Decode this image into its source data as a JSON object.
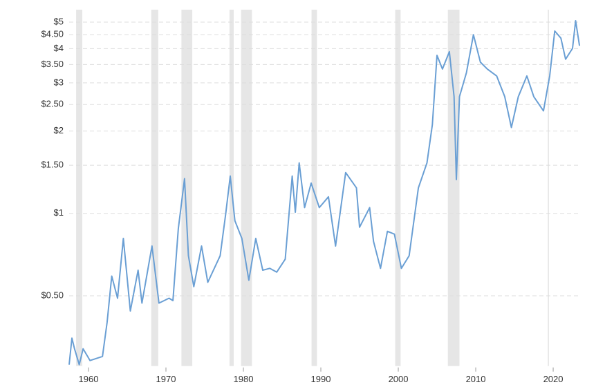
{
  "chart_data": {
    "type": "line",
    "log_scale": true,
    "grid": true,
    "color": "#6a9fd4",
    "band_color": "#e6e6e6",
    "xlim": [
      1957.5,
      2023.8
    ],
    "ylim": [
      0.28,
      5.4
    ],
    "xticks": [
      1960,
      1970,
      1980,
      1990,
      2000,
      2010,
      2020
    ],
    "yticks": [
      {
        "value": 0.5,
        "label": "$0.50"
      },
      {
        "value": 1,
        "label": "$1"
      },
      {
        "value": 1.5,
        "label": "$1.50"
      },
      {
        "value": 2,
        "label": "$2"
      },
      {
        "value": 2.5,
        "label": "$2.50"
      },
      {
        "value": 3,
        "label": "$3"
      },
      {
        "value": 3.5,
        "label": "$3.50"
      },
      {
        "value": 4,
        "label": "$4"
      },
      {
        "value": 4.5,
        "label": "$4.50"
      },
      {
        "value": 5,
        "label": "$5"
      }
    ],
    "shaded_ranges": [
      [
        1958.4,
        1959.2
      ],
      [
        1968.1,
        1969.0
      ],
      [
        1972.0,
        1973.4
      ],
      [
        1978.2,
        1978.75
      ],
      [
        1979.7,
        1981.1
      ],
      [
        1988.8,
        1989.5
      ],
      [
        1999.6,
        2000.3
      ],
      [
        2006.4,
        2007.9
      ],
      [
        2019.3,
        2019.45
      ]
    ],
    "x": [
      1957.5,
      1957.86,
      1958.2,
      1958.8,
      1959.3,
      1960.2,
      1961.8,
      1962.4,
      1963.0,
      1963.75,
      1964.5,
      1965.4,
      1966.4,
      1966.9,
      1968.2,
      1969.1,
      1970.4,
      1970.9,
      1971.6,
      1972.4,
      1972.9,
      1973.6,
      1974.6,
      1975.4,
      1977.0,
      1977.7,
      1978.3,
      1978.9,
      1979.8,
      1980.7,
      1981.6,
      1982.5,
      1983.4,
      1984.3,
      1985.4,
      1986.3,
      1986.7,
      1987.2,
      1987.9,
      1988.75,
      1989.8,
      1990.98,
      1991.9,
      1993.2,
      1994.6,
      1995.0,
      1996.3,
      1996.8,
      1997.7,
      1998.6,
      1999.5,
      2000.4,
      2001.4,
      2002.6,
      2003.7,
      2004.4,
      2005.0,
      2005.7,
      2006.6,
      2007.2,
      2007.5,
      2007.9,
      2008.8,
      2009.7,
      2010.6,
      2011.5,
      2012.7,
      2013.75,
      2014.6,
      2015.5,
      2016.6,
      2017.5,
      2018.75,
      2019.55,
      2020.2,
      2021.0,
      2021.6,
      2022.5,
      2022.9,
      2023.4
    ],
    "values": [
      0.28,
      0.35,
      0.32,
      0.28,
      0.32,
      0.29,
      0.3,
      0.4,
      0.59,
      0.49,
      0.81,
      0.44,
      0.62,
      0.47,
      0.76,
      0.47,
      0.49,
      0.48,
      0.88,
      1.34,
      0.7,
      0.54,
      0.76,
      0.56,
      0.7,
      0.99,
      1.37,
      0.94,
      0.81,
      0.57,
      0.81,
      0.62,
      0.63,
      0.61,
      0.68,
      1.37,
      1.01,
      1.53,
      1.05,
      1.29,
      1.05,
      1.15,
      0.76,
      1.41,
      1.24,
      0.89,
      1.05,
      0.79,
      0.63,
      0.86,
      0.84,
      0.63,
      0.7,
      1.24,
      1.53,
      2.11,
      3.78,
      3.37,
      3.9,
      2.67,
      1.33,
      2.67,
      3.27,
      4.5,
      3.57,
      3.37,
      3.18,
      2.67,
      2.06,
      2.67,
      3.18,
      2.67,
      2.37,
      3.18,
      4.64,
      4.37,
      3.66,
      4.01,
      5.06,
      4.1
    ]
  }
}
